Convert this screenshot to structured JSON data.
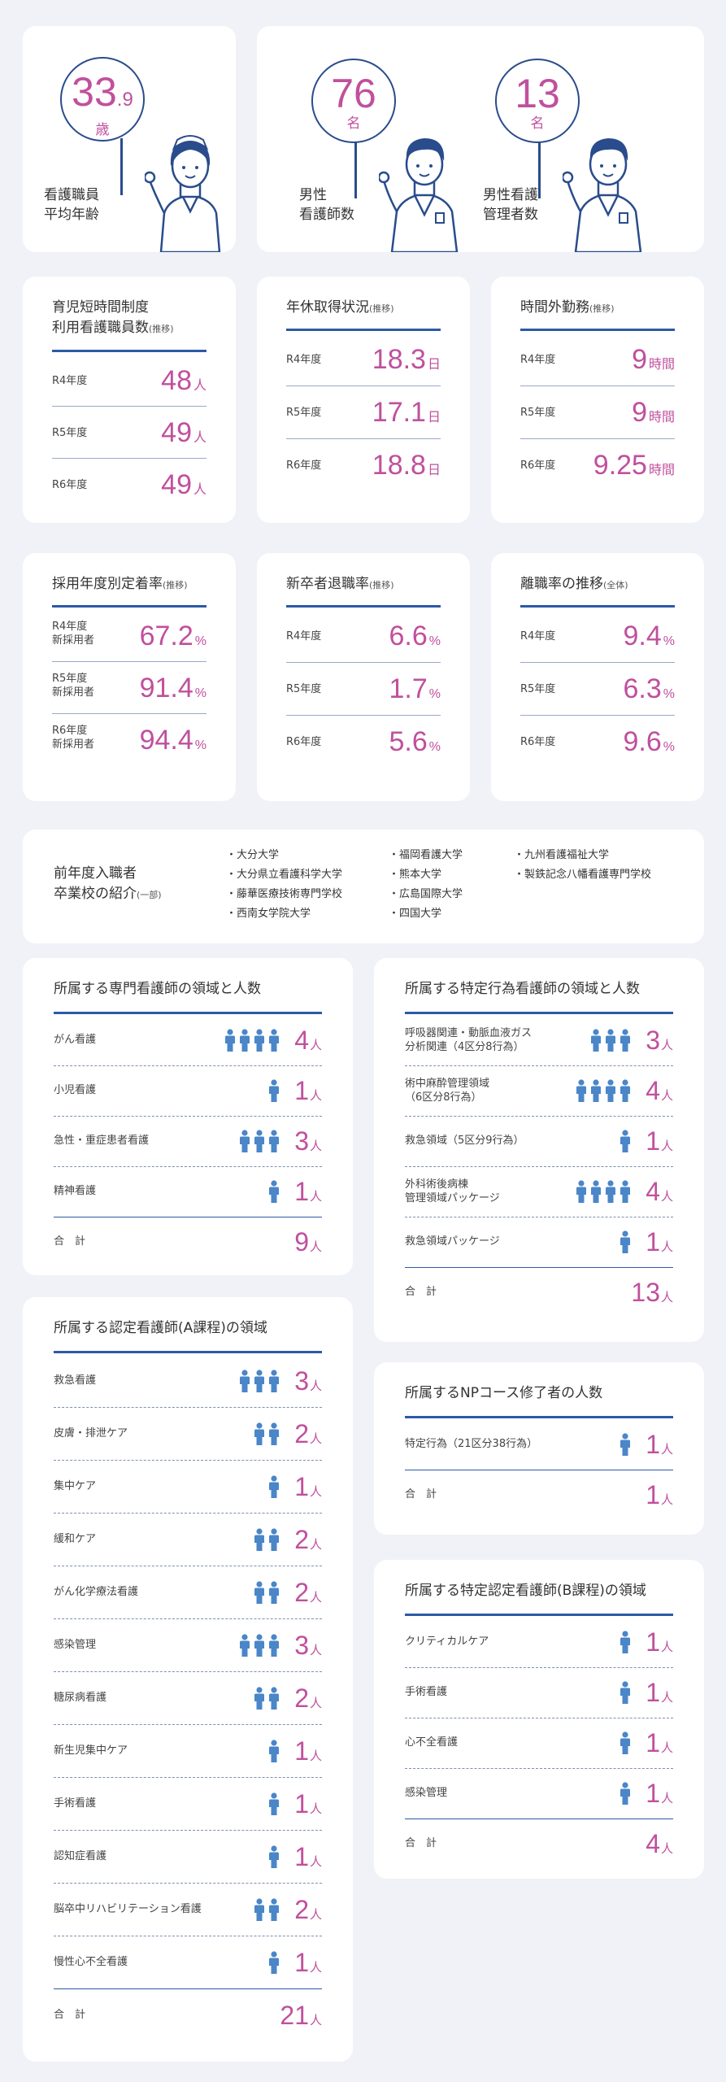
{
  "top": {
    "age": {
      "value": "33",
      "decimal": ".9",
      "unit": "歳",
      "caption1": "看護職員",
      "caption2": "平均年齢"
    },
    "male_nurses": {
      "value": "76",
      "unit": "名",
      "caption1": "男性",
      "caption2": "看護師数"
    },
    "male_managers": {
      "value": "13",
      "unit": "名",
      "caption1": "男性看護",
      "caption2": "管理者数"
    }
  },
  "childcare": {
    "title1": "育児短時間制度",
    "title2": "利用看護職員数",
    "title_small": "(推移)",
    "rows": [
      {
        "label": "R4年度",
        "value": "48",
        "unit": "人"
      },
      {
        "label": "R5年度",
        "value": "49",
        "unit": "人"
      },
      {
        "label": "R6年度",
        "value": "49",
        "unit": "人"
      }
    ]
  },
  "leave": {
    "title": "年休取得状況",
    "title_small": "(推移)",
    "rows": [
      {
        "label": "R4年度",
        "value": "18.3",
        "unit": "日"
      },
      {
        "label": "R5年度",
        "value": "17.1",
        "unit": "日"
      },
      {
        "label": "R6年度",
        "value": "18.8",
        "unit": "日"
      }
    ]
  },
  "overtime": {
    "title": "時間外勤務",
    "title_small": "(推移)",
    "rows": [
      {
        "label": "R4年度",
        "value": "9",
        "unit": "時間"
      },
      {
        "label": "R5年度",
        "value": "9",
        "unit": "時間"
      },
      {
        "label": "R6年度",
        "value": "9.25",
        "unit": "時間"
      }
    ]
  },
  "retention": {
    "title": "採用年度別定着率",
    "title_small": "(推移)",
    "rows": [
      {
        "label1": "R4年度",
        "label2": "新採用者",
        "value": "67.2",
        "unit": "%"
      },
      {
        "label1": "R5年度",
        "label2": "新採用者",
        "value": "91.4",
        "unit": "%"
      },
      {
        "label1": "R6年度",
        "label2": "新採用者",
        "value": "94.4",
        "unit": "%"
      }
    ]
  },
  "newgrad": {
    "title": "新卒者退職率",
    "title_small": "(推移)",
    "rows": [
      {
        "label": "R4年度",
        "value": "6.6",
        "unit": "%"
      },
      {
        "label": "R5年度",
        "value": "1.7",
        "unit": "%"
      },
      {
        "label": "R6年度",
        "value": "5.6",
        "unit": "%"
      }
    ]
  },
  "turnover": {
    "title": "離職率の推移",
    "title_small": "(全体)",
    "rows": [
      {
        "label": "R4年度",
        "value": "9.4",
        "unit": "%"
      },
      {
        "label": "R5年度",
        "value": "6.3",
        "unit": "%"
      },
      {
        "label": "R6年度",
        "value": "9.6",
        "unit": "%"
      }
    ]
  },
  "schools": {
    "title1": "前年度入職者",
    "title2": "卒業校の紹介",
    "title_small": "(一部)",
    "col1": [
      "・大分大学",
      "・大分県立看護科学大学",
      "・藤華医療技術専門学校",
      "・西南女学院大学"
    ],
    "col2": [
      "・福岡看護大学",
      "・熊本大学",
      "・広島国際大学",
      "・四国大学"
    ],
    "col3": [
      "・九州看護福祉大学",
      "・製鉄記念八幡看護専門学校"
    ]
  },
  "specialist": {
    "title": "所属する専門看護師の領域と人数",
    "rows": [
      {
        "label": "がん看護",
        "count": 4
      },
      {
        "label": "小児看護",
        "count": 1
      },
      {
        "label": "急性・重症患者看護",
        "count": 3
      },
      {
        "label": "精神看護",
        "count": 1
      }
    ],
    "total_label": "合　計",
    "total": "9",
    "unit": "人"
  },
  "certified_a": {
    "title": "所属する認定看護師(A課程)の領域",
    "rows": [
      {
        "label": "救急看護",
        "count": 3
      },
      {
        "label": "皮膚・排泄ケア",
        "count": 2
      },
      {
        "label": "集中ケア",
        "count": 1
      },
      {
        "label": "緩和ケア",
        "count": 2
      },
      {
        "label": "がん化学療法看護",
        "count": 2
      },
      {
        "label": "感染管理",
        "count": 3
      },
      {
        "label": "糖尿病看護",
        "count": 2
      },
      {
        "label": "新生児集中ケア",
        "count": 1
      },
      {
        "label": "手術看護",
        "count": 1
      },
      {
        "label": "認知症看護",
        "count": 1
      },
      {
        "label": "脳卒中リハビリテーション看護",
        "count": 2
      },
      {
        "label": "慢性心不全看護",
        "count": 1
      }
    ],
    "total_label": "合　計",
    "total": "21",
    "unit": "人"
  },
  "specified": {
    "title": "所属する特定行為看護師の領域と人数",
    "rows": [
      {
        "label1": "呼吸器関連・動脈血液ガス",
        "label2": "分析関連（4区分8行為）",
        "count": 3
      },
      {
        "label1": "術中麻酔管理領域",
        "label2": "（6区分8行為）",
        "count": 4
      },
      {
        "label1": "救急領域（5区分9行為）",
        "label2": "",
        "count": 1
      },
      {
        "label1": "外科術後病棟",
        "label2": "管理領域パッケージ",
        "count": 4
      },
      {
        "label1": "救急領域パッケージ",
        "label2": "",
        "count": 1
      }
    ],
    "total_label": "合　計",
    "total": "13",
    "unit": "人"
  },
  "np": {
    "title": "所属するNPコース修了者の人数",
    "rows": [
      {
        "label": "特定行為（21区分38行為）",
        "count": 1
      }
    ],
    "total_label": "合　計",
    "total": "1",
    "unit": "人"
  },
  "certified_b": {
    "title": "所属する特定認定看護師(B課程)の領域",
    "rows": [
      {
        "label": "クリティカルケア",
        "count": 1
      },
      {
        "label": "手術看護",
        "count": 1
      },
      {
        "label": "心不全看護",
        "count": 1
      },
      {
        "label": "感染管理",
        "count": 1
      }
    ],
    "total_label": "合　計",
    "total": "4",
    "unit": "人"
  },
  "colors": {
    "accent": "#c0509d",
    "navy": "#2a4c8c",
    "icon": "#4a86c8",
    "background": "#f0f2f7"
  }
}
